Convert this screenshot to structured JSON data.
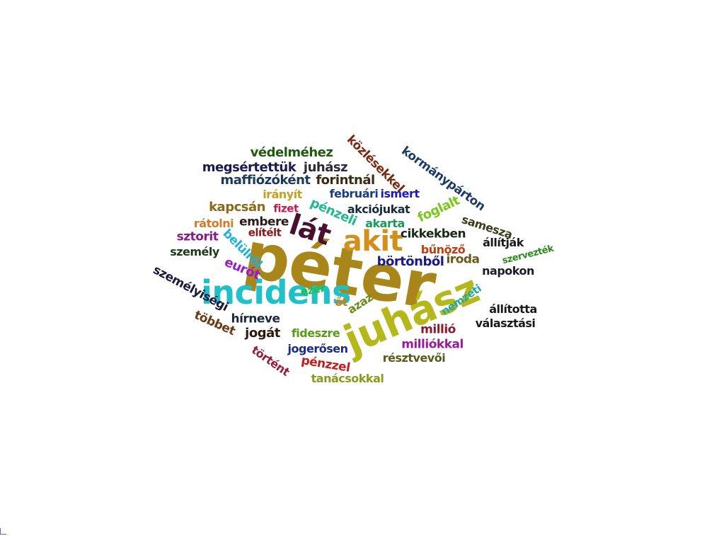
{
  "words": [
    {
      "text": "péter",
      "color": "#a8861a"
    },
    {
      "text": "juhász",
      "color": "#b4b81a"
    },
    {
      "text": "incidens",
      "color": "#20c0c8"
    },
    {
      "text": "akit",
      "color": "#d2901a"
    },
    {
      "text": "lát",
      "color": "#4a1030"
    },
    {
      "text": "védelméhez",
      "color": "#1e5a10"
    },
    {
      "text": "megsértettük",
      "color": "#1a1a50"
    },
    {
      "text": "juhász",
      "color": "#2a2a3a"
    },
    {
      "text": "maffiózóként",
      "color": "#1a3a5a"
    },
    {
      "text": "forintnál",
      "color": "#3a2a10"
    },
    {
      "text": "irányít",
      "color": "#c8a020"
    },
    {
      "text": "februári",
      "color": "#1a3a8a"
    },
    {
      "text": "ismert",
      "color": "#1a1ac8"
    },
    {
      "text": "kapcsán",
      "color": "#8a6a1a"
    },
    {
      "text": "fizet",
      "color": "#c81a50"
    },
    {
      "text": "pénzeli",
      "color": "#20b890"
    },
    {
      "text": "akciójukat",
      "color": "#1a2a3a"
    },
    {
      "text": "rátolni",
      "color": "#d8782a"
    },
    {
      "text": "embere",
      "color": "#2a1a1a"
    },
    {
      "text": "akarta",
      "color": "#1a9a5a"
    },
    {
      "text": "foglalt",
      "color": "#78c81a"
    },
    {
      "text": "sztorit",
      "color": "#8a1a8a"
    },
    {
      "text": "elítélt",
      "color": "#8a1a1a"
    },
    {
      "text": "cikkekben",
      "color": "#1a2a1a"
    },
    {
      "text": "samesza",
      "color": "#3a3a1a"
    },
    {
      "text": "személy",
      "color": "#1a3a1a"
    },
    {
      "text": "belülről",
      "color": "#20b0e0"
    },
    {
      "text": "bűnöző",
      "color": "#c83a10"
    },
    {
      "text": "állítják",
      "color": "#1a1a1a"
    },
    {
      "text": "szervezték",
      "color": "#2a8a1a"
    },
    {
      "text": "eurót",
      "color": "#9a1ac8"
    },
    {
      "text": "börtönből",
      "color": "#1a1a8a"
    },
    {
      "text": "iroda",
      "color": "#6a5a1a"
    },
    {
      "text": "napokon",
      "color": "#1a1a2a"
    },
    {
      "text": "személyiségi",
      "color": "#1a1a3a"
    },
    {
      "text": "ezer",
      "color": "#20c040"
    },
    {
      "text": "azaz",
      "color": "#6a8a1a"
    },
    {
      "text": "nemzeti",
      "color": "#20a8a8"
    },
    {
      "text": "őt",
      "color": "#d87a10"
    },
    {
      "text": "állította",
      "color": "#1a1a1a"
    },
    {
      "text": "hírneve",
      "color": "#1a2a3a"
    },
    {
      "text": "többet",
      "color": "#6a3a10"
    },
    {
      "text": "jogát",
      "color": "#2a1a10"
    },
    {
      "text": "fideszre",
      "color": "#5a9a1a"
    },
    {
      "text": "millió",
      "color": "#8a1a2a"
    },
    {
      "text": "választási",
      "color": "#1a1a1a"
    },
    {
      "text": "milliókkal",
      "color": "#9a1a9a"
    },
    {
      "text": "történt",
      "color": "#9a1a3a"
    },
    {
      "text": "jogerősen",
      "color": "#1a2a8a"
    },
    {
      "text": "résztvevői",
      "color": "#5a5a1a"
    },
    {
      "text": "pénzzel",
      "color": "#c81a1a"
    },
    {
      "text": "tanácsokkal",
      "color": "#8a9a1a"
    },
    {
      "text": "közlésekkel",
      "color": "#7a2a10"
    },
    {
      "text": "kormánypárton",
      "color": "#1a3a6a"
    }
  ]
}
